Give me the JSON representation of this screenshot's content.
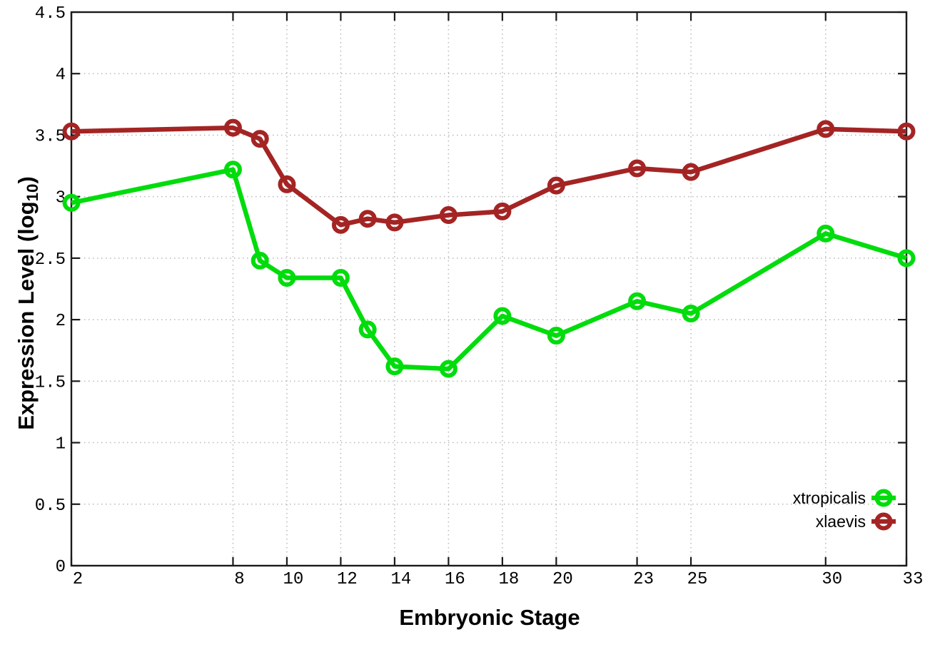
{
  "figure": {
    "background_color": "#ffffff",
    "border_color": "#1a1a1a",
    "grid_color": "#b8b8b8"
  },
  "labels": {
    "ylabel_prefix": "Expression Level (log",
    "ylabel_sub": "10",
    "ylabel_suffix": ")"
  },
  "chart_data": {
    "type": "line",
    "title": "",
    "xlabel": "Embryonic Stage",
    "ylabel": "Expression Level (log10)",
    "xlim": [
      2,
      33
    ],
    "ylim": [
      0,
      4.5
    ],
    "grid": true,
    "legend_position": "bottom-right",
    "xtick_values": [
      2,
      8,
      10,
      12,
      14,
      16,
      18,
      20,
      23,
      25,
      30,
      33
    ],
    "xtick_labels": [
      "2",
      "8",
      "10",
      "12",
      "14",
      "16",
      "18",
      "20",
      "23",
      "25",
      "30",
      "33"
    ],
    "ytick_values": [
      0,
      0.5,
      1,
      1.5,
      2,
      2.5,
      3,
      3.5,
      4,
      4.5
    ],
    "ytick_labels": [
      "0",
      "0.5",
      "1",
      "1.5",
      "2",
      "2.5",
      "3",
      "3.5",
      "4",
      "4.5"
    ],
    "x": [
      2,
      8,
      9,
      10,
      12,
      13,
      14,
      16,
      18,
      20,
      23,
      25,
      30,
      33
    ],
    "series": [
      {
        "name": "xtropicalis",
        "color": "#00dc0c",
        "marker": "open-circle",
        "values": [
          2.95,
          3.22,
          2.48,
          2.34,
          2.34,
          1.92,
          1.62,
          1.6,
          2.03,
          1.87,
          2.15,
          2.05,
          2.7,
          2.5
        ]
      },
      {
        "name": "xlaevis",
        "color": "#a42424",
        "marker": "open-circle",
        "values": [
          3.53,
          3.56,
          3.47,
          3.1,
          2.77,
          2.82,
          2.79,
          2.85,
          2.88,
          3.09,
          3.23,
          3.2,
          3.55,
          3.53
        ]
      }
    ]
  }
}
